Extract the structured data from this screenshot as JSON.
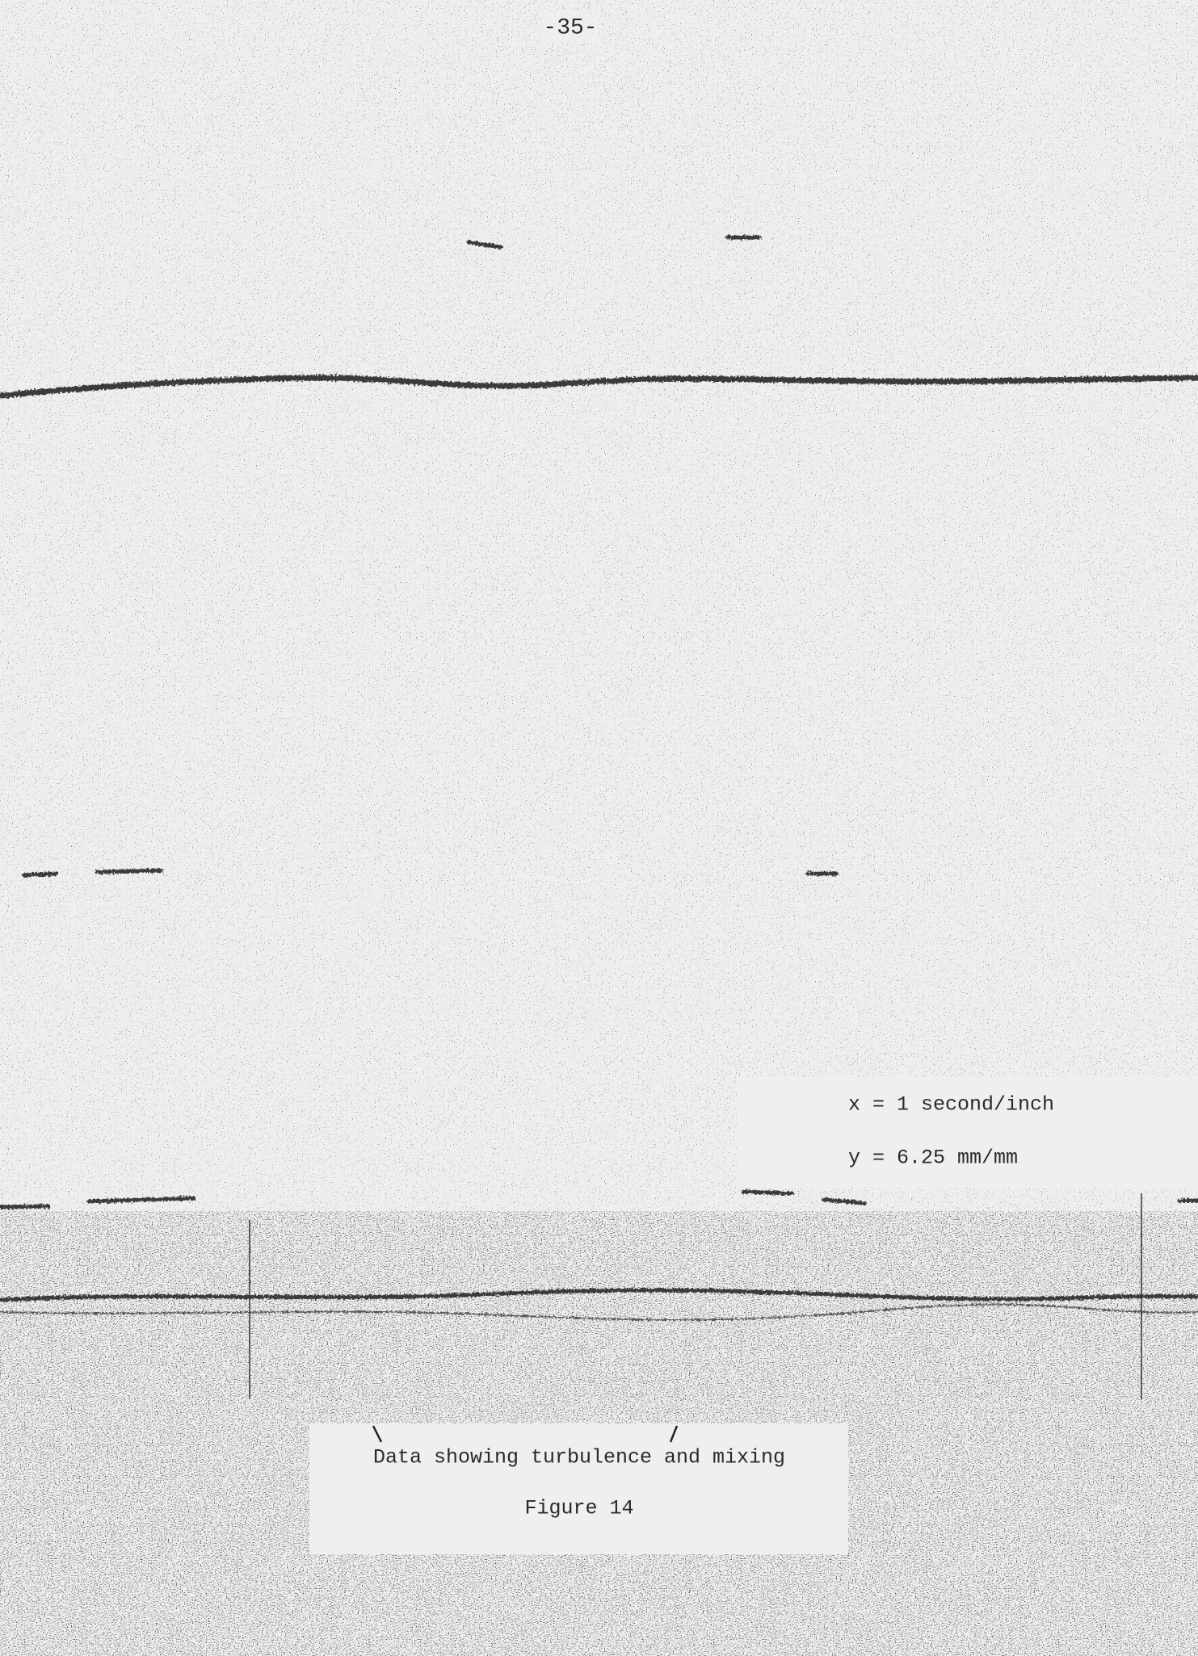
{
  "page_number": "-35-",
  "figure": {
    "annotations": [
      "x = 1 second/inch",
      "y = 6.25 mm/mm"
    ],
    "caption": "Data showing turbulence and mixing",
    "label": "Figure 14"
  }
}
